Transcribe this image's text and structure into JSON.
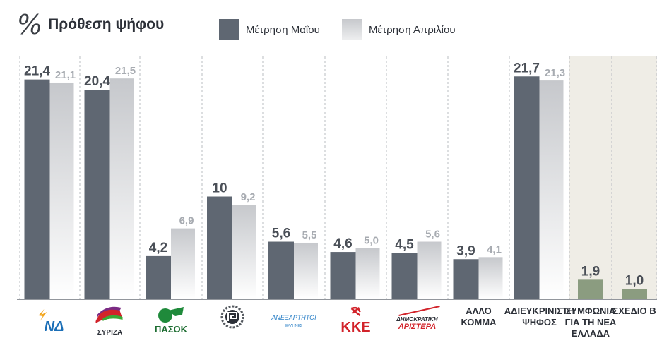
{
  "title": {
    "symbol": "%",
    "text": "Πρόθεση ψήφου"
  },
  "legend": [
    {
      "label": "Μέτρηση Μαΐου",
      "color": "#5f6772"
    },
    {
      "label": "Μέτρηση Απριλίου",
      "color": "#c8cace"
    }
  ],
  "colors": {
    "may": "#5f6772",
    "april_top": "#c6c8cc",
    "april_bottom": "#ffffff",
    "label_may": "#4a4f57",
    "label_april": "#a7abb1",
    "small_party": "#8b9c80",
    "small_bg": "#efede6"
  },
  "chart_data": {
    "type": "bar",
    "categories": [
      "ΝΔ",
      "ΣΥΡΙΖΑ",
      "ΠΑΣΟΚ",
      "Χρυσή Αυγή",
      "ΑΝΕΞΑΡΤΗΤΟΙ ΕΛΛΗΝΕΣ",
      "ΚΚΕ",
      "ΔΗΜΟΚΡΑΤΙΚΗ ΑΡΙΣΤΕΡΑ",
      "ΑΛΛΟ ΚΟΜΜΑ",
      "ΑΔΙΕΥΚΡΙΝΙΣΤΗ ΨΗΦΟΣ",
      "ΣΥΜΦΩΝΙΑ ΓΙΑ ΤΗ ΝΕΑ ΕΛΛΑΔΑ",
      "ΣΧΕΔΙΟ Β"
    ],
    "series": [
      {
        "name": "Μέτρηση Μαΐου",
        "values": [
          21.4,
          20.4,
          4.2,
          10,
          5.6,
          4.6,
          4.5,
          3.9,
          21.7,
          1.9,
          1.0
        ],
        "labels": [
          "21,4",
          "20,4",
          "4,2",
          "10",
          "5,6",
          "4,6",
          "4,5",
          "3,9",
          "21,7",
          "1,9",
          "1,0"
        ]
      },
      {
        "name": "Μέτρηση Απριλίου",
        "values": [
          21.1,
          21.5,
          6.9,
          9.2,
          5.5,
          5.0,
          5.6,
          4.1,
          21.3,
          null,
          null
        ],
        "labels": [
          "21,1",
          "21,5",
          "6,9",
          "9,2",
          "5,5",
          "5,0",
          "5,6",
          "4,1",
          "21,3",
          "",
          ""
        ]
      }
    ],
    "ylim": [
      0,
      25
    ],
    "grid": false,
    "legend_position": "top"
  },
  "categories_display": [
    {
      "type": "logo",
      "text": "ΝΔ",
      "icon": "nd-logo-icon"
    },
    {
      "type": "logo",
      "text": "ΣΥΡΙΖΑ",
      "icon": "syriza-logo-icon"
    },
    {
      "type": "logo",
      "text": "ΠΑΣΟΚ",
      "icon": "pasok-logo-icon"
    },
    {
      "type": "logo",
      "text": "",
      "icon": "golden-dawn-logo-icon"
    },
    {
      "type": "logo",
      "text": "ΑΝΕΞΑΡΤΗΤΟΙ",
      "subtext": "ΕΛΛΗΝΕΣ",
      "icon": "anel-logo-icon"
    },
    {
      "type": "logo",
      "text": "ΚΚΕ",
      "icon": "kke-logo-icon"
    },
    {
      "type": "logo",
      "text": "ΔΗΜΟΚΡΑΤΙΚΗ",
      "subtext": "ΑΡΙΣΤΕΡΑ",
      "icon": "dimar-logo-icon"
    },
    {
      "type": "text",
      "lines": [
        "ΑΛΛΟ",
        "ΚΟΜΜΑ"
      ]
    },
    {
      "type": "text",
      "lines": [
        "ΑΔΙΕΥΚΡΙΝΙΣΤΗ",
        "ΨΗΦΟΣ"
      ]
    },
    {
      "type": "text",
      "lines": [
        "ΣΥΜΦΩΝΙΑ",
        "ΓΙΑ ΤΗ ΝΕΑ",
        "ΕΛΛΑΔΑ"
      ]
    },
    {
      "type": "text",
      "lines": [
        "ΣΧΕΔΙΟ Β"
      ]
    }
  ]
}
